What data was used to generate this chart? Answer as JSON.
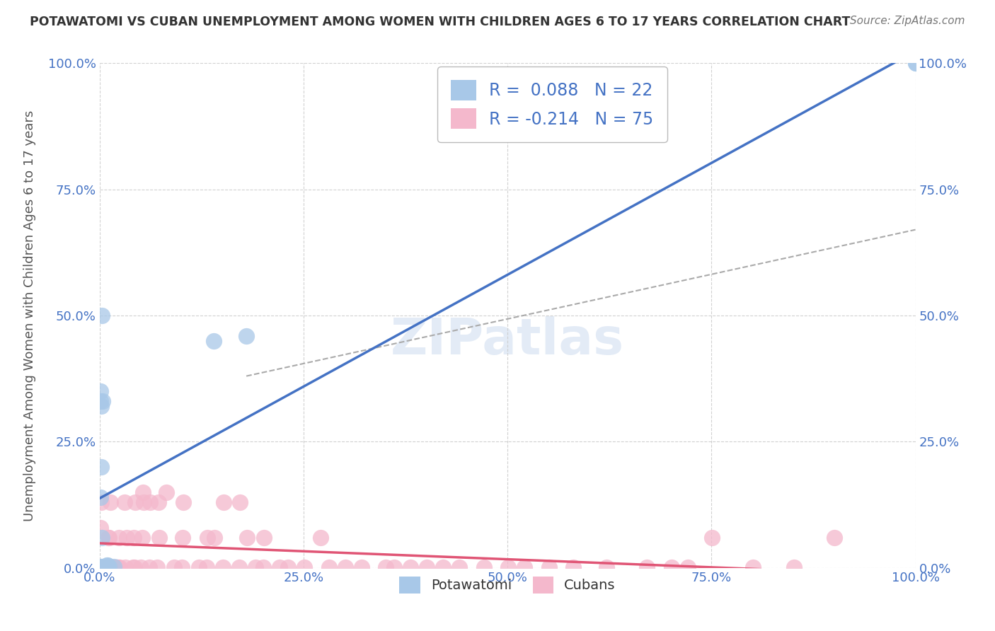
{
  "title": "POTAWATOMI VS CUBAN UNEMPLOYMENT AMONG WOMEN WITH CHILDREN AGES 6 TO 17 YEARS CORRELATION CHART",
  "source": "Source: ZipAtlas.com",
  "ylabel": "Unemployment Among Women with Children Ages 6 to 17 years",
  "xlim": [
    0.0,
    1.0
  ],
  "ylim": [
    0.0,
    1.0
  ],
  "xtick_labels": [
    "0.0%",
    "25.0%",
    "50.0%",
    "75.0%",
    "100.0%"
  ],
  "ytick_labels": [
    "0.0%",
    "25.0%",
    "50.0%",
    "75.0%",
    "100.0%"
  ],
  "potawatomi_color": "#a8c8e8",
  "cuban_color": "#f4b8cc",
  "potawatomi_line_color": "#4472c4",
  "cuban_line_color": "#e05575",
  "R_potawatomi": 0.088,
  "N_potawatomi": 22,
  "R_cuban": -0.214,
  "N_cuban": 75,
  "potawatomi_x": [
    0.002,
    0.009,
    0.001,
    0.002,
    0.001,
    0.003,
    0.01,
    0.01,
    0.018,
    0.002,
    0.001,
    0.004,
    0.012,
    0.14,
    0.003,
    0.001,
    0.18,
    0.002,
    0.001,
    0.01,
    1.0,
    1.0
  ],
  "potawatomi_y": [
    0.32,
    0.005,
    0.33,
    0.2,
    0.14,
    0.06,
    0.005,
    0.003,
    0.003,
    0.002,
    0.001,
    0.33,
    0.002,
    0.45,
    0.5,
    0.35,
    0.46,
    0.001,
    0.002,
    0.002,
    1.0,
    1.0
  ],
  "cuban_x": [
    0.002,
    0.003,
    0.001,
    0.004,
    0.005,
    0.012,
    0.011,
    0.013,
    0.014,
    0.015,
    0.016,
    0.022,
    0.021,
    0.023,
    0.024,
    0.025,
    0.031,
    0.032,
    0.033,
    0.041,
    0.042,
    0.043,
    0.044,
    0.051,
    0.052,
    0.053,
    0.054,
    0.061,
    0.062,
    0.071,
    0.072,
    0.073,
    0.082,
    0.091,
    0.101,
    0.102,
    0.103,
    0.122,
    0.131,
    0.132,
    0.141,
    0.151,
    0.152,
    0.171,
    0.172,
    0.181,
    0.191,
    0.201,
    0.202,
    0.221,
    0.231,
    0.251,
    0.271,
    0.281,
    0.301,
    0.321,
    0.351,
    0.361,
    0.381,
    0.401,
    0.421,
    0.441,
    0.471,
    0.501,
    0.521,
    0.551,
    0.581,
    0.621,
    0.671,
    0.701,
    0.721,
    0.751,
    0.801,
    0.851,
    0.901
  ],
  "cuban_y": [
    0.13,
    0.001,
    0.08,
    0.001,
    0.001,
    0.06,
    0.06,
    0.13,
    0.001,
    0.001,
    0.001,
    0.001,
    0.001,
    0.001,
    0.06,
    0.001,
    0.13,
    0.001,
    0.06,
    0.001,
    0.06,
    0.001,
    0.13,
    0.001,
    0.06,
    0.15,
    0.13,
    0.001,
    0.13,
    0.001,
    0.13,
    0.06,
    0.15,
    0.001,
    0.001,
    0.06,
    0.13,
    0.001,
    0.001,
    0.06,
    0.06,
    0.001,
    0.13,
    0.001,
    0.13,
    0.06,
    0.001,
    0.001,
    0.06,
    0.001,
    0.001,
    0.001,
    0.06,
    0.001,
    0.001,
    0.001,
    0.001,
    0.001,
    0.001,
    0.001,
    0.001,
    0.001,
    0.001,
    0.001,
    0.001,
    0.001,
    0.001,
    0.001,
    0.001,
    0.001,
    0.001,
    0.06,
    0.001,
    0.001,
    0.06
  ],
  "watermark": "ZIPatlas",
  "background_color": "#ffffff",
  "grid_color": "#cccccc",
  "title_color": "#333333",
  "label_color": "#555555",
  "tick_color": "#4472c4",
  "legend_text_color": "#4472c4"
}
